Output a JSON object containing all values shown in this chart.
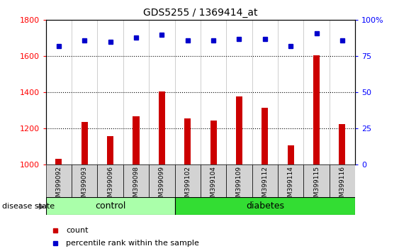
{
  "title": "GDS5255 / 1369414_at",
  "samples": [
    "GSM399092",
    "GSM399093",
    "GSM399096",
    "GSM399098",
    "GSM399099",
    "GSM399102",
    "GSM399104",
    "GSM399109",
    "GSM399112",
    "GSM399114",
    "GSM399115",
    "GSM399116"
  ],
  "counts": [
    1030,
    1235,
    1155,
    1265,
    1405,
    1255,
    1245,
    1375,
    1315,
    1105,
    1605,
    1225
  ],
  "percentiles": [
    82,
    86,
    85,
    88,
    90,
    86,
    86,
    87,
    87,
    82,
    91,
    86
  ],
  "control_count": 5,
  "diabetes_count": 7,
  "ylim_left": [
    1000,
    1800
  ],
  "ylim_right": [
    0,
    100
  ],
  "yticks_left": [
    1000,
    1200,
    1400,
    1600,
    1800
  ],
  "yticks_right": [
    0,
    25,
    50,
    75,
    100
  ],
  "bar_color": "#cc0000",
  "dot_color": "#0000cc",
  "control_color": "#aaffaa",
  "diabetes_color": "#33dd33",
  "bg_color": "#d3d3d3",
  "chart_bg": "#ffffff",
  "grid_color": "#000000",
  "label_count": "count",
  "label_percentile": "percentile rank within the sample",
  "disease_label": "disease state",
  "control_label": "control",
  "diabetes_label": "diabetes",
  "bar_width": 0.25
}
